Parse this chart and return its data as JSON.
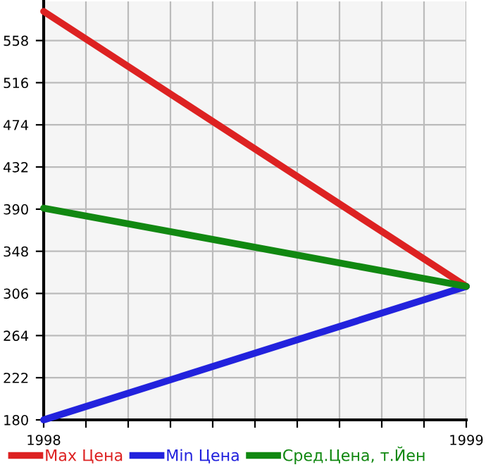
{
  "chart_data": {
    "type": "line",
    "x": [
      1998,
      1999
    ],
    "series": [
      {
        "name": "Max Цена",
        "color": "#dd2222",
        "values": [
          587,
          313
        ]
      },
      {
        "name": "Min Цена",
        "color": "#2222dd",
        "values": [
          180,
          313
        ]
      },
      {
        "name": "Сред.Цена, т.Йен",
        "color": "#118811",
        "values": [
          391,
          313
        ]
      }
    ],
    "xlim": [
      1998,
      1999
    ],
    "xticks": [
      1998,
      {
        "value": 1998.1,
        "label": null
      },
      {
        "value": 1998.2,
        "label": null
      },
      {
        "value": 1998.3,
        "label": null
      },
      {
        "value": 1998.4,
        "label": null
      },
      {
        "value": 1998.5,
        "label": null
      },
      {
        "value": 1998.6,
        "label": null
      },
      {
        "value": 1998.7,
        "label": null
      },
      {
        "value": 1998.8,
        "label": null
      },
      {
        "value": 1998.9,
        "label": null
      },
      1999
    ],
    "ylim": [
      180,
      597
    ],
    "yticks": [
      180,
      222,
      264,
      306,
      348,
      390,
      432,
      474,
      516,
      558
    ],
    "grid": true,
    "legend": "bottom",
    "marker": "none",
    "line_style": "solid"
  }
}
